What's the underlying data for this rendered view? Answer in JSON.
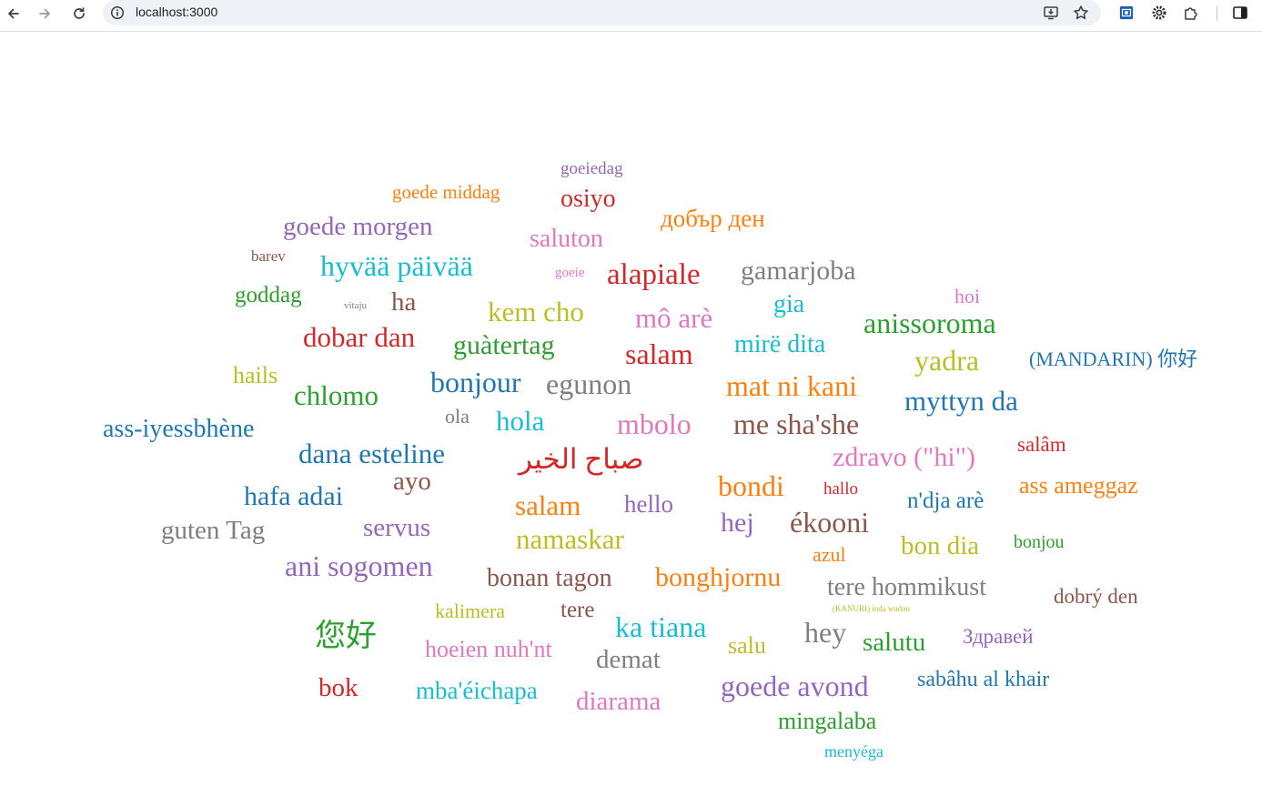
{
  "browser": {
    "url": "localhost:3000",
    "icons": {
      "back": "back-arrow-icon",
      "forward": "forward-arrow-icon",
      "reload": "reload-icon",
      "site_info": "info-icon",
      "install": "install-app-icon",
      "bookmark": "star-icon",
      "extension_1": "extension-blue-icon",
      "extension_2": "gear-icon",
      "extensions": "puzzle-icon",
      "side_panel": "side-panel-icon"
    }
  },
  "word_cloud": {
    "words": [
      {
        "text": "goeiedag",
        "color": "#9467bd"
      },
      {
        "text": "goede middag",
        "color": "#ff7f0e"
      },
      {
        "text": "osiyo",
        "color": "#d62728"
      },
      {
        "text": "добър ден",
        "color": "#ff7f0e"
      },
      {
        "text": "goede morgen",
        "color": "#9467bd"
      },
      {
        "text": "saluton",
        "color": "#e377c2"
      },
      {
        "text": "barev",
        "color": "#8c564b"
      },
      {
        "text": "hyvää päivää",
        "color": "#17becf"
      },
      {
        "text": "goeie",
        "color": "#e377c2"
      },
      {
        "text": "alapiale",
        "color": "#d62728"
      },
      {
        "text": "gamarjoba",
        "color": "#7f7f7f"
      },
      {
        "text": "goddag",
        "color": "#2ca02c"
      },
      {
        "text": "vitaju",
        "color": "#7f7f7f"
      },
      {
        "text": "ha",
        "color": "#8c564b"
      },
      {
        "text": "kem cho",
        "color": "#bcbd22"
      },
      {
        "text": "mô arè",
        "color": "#e377c2"
      },
      {
        "text": "gia",
        "color": "#17becf"
      },
      {
        "text": "hoi",
        "color": "#e377c2"
      },
      {
        "text": "anissoroma",
        "color": "#2ca02c"
      },
      {
        "text": "dobar dan",
        "color": "#d62728"
      },
      {
        "text": "guàtertag",
        "color": "#2ca02c"
      },
      {
        "text": "salam",
        "color": "#d62728"
      },
      {
        "text": "mirë dita",
        "color": "#17becf"
      },
      {
        "text": "yadra",
        "color": "#bcbd22"
      },
      {
        "text": "(MANDARIN) 你好",
        "color": "#1f77b4"
      },
      {
        "text": "hails",
        "color": "#bcbd22"
      },
      {
        "text": "chlomo",
        "color": "#2ca02c"
      },
      {
        "text": "bonjour",
        "color": "#1f77b4"
      },
      {
        "text": "egunon",
        "color": "#7f7f7f"
      },
      {
        "text": "mat ni kani",
        "color": "#ff7f0e"
      },
      {
        "text": "myttyn da",
        "color": "#1f77b4"
      },
      {
        "text": "ass-iyessbhène",
        "color": "#1f77b4"
      },
      {
        "text": "ola",
        "color": "#7f7f7f"
      },
      {
        "text": "hola",
        "color": "#17becf"
      },
      {
        "text": "mbolo",
        "color": "#e377c2"
      },
      {
        "text": "me sha'she",
        "color": "#8c564b"
      },
      {
        "text": "salâm",
        "color": "#d62728"
      },
      {
        "text": "dana esteline",
        "color": "#1f77b4"
      },
      {
        "text": "صباح الخير",
        "color": "#d62728"
      },
      {
        "text": "zdravo (\"hi\")",
        "color": "#e377c2"
      },
      {
        "text": "ayo",
        "color": "#8c564b"
      },
      {
        "text": "bondi",
        "color": "#ff7f0e"
      },
      {
        "text": "hallo",
        "color": "#d62728"
      },
      {
        "text": "ass ameggaz",
        "color": "#ff7f0e"
      },
      {
        "text": "hafa adai",
        "color": "#1f77b4"
      },
      {
        "text": "salam",
        "color": "#ff7f0e"
      },
      {
        "text": "hello",
        "color": "#9467bd"
      },
      {
        "text": "n'dja arè",
        "color": "#1f77b4"
      },
      {
        "text": "guten Tag",
        "color": "#7f7f7f"
      },
      {
        "text": "servus",
        "color": "#9467bd"
      },
      {
        "text": "namaskar",
        "color": "#bcbd22"
      },
      {
        "text": "hej",
        "color": "#9467bd"
      },
      {
        "text": "ékooni",
        "color": "#8c564b"
      },
      {
        "text": "azul",
        "color": "#ff7f0e"
      },
      {
        "text": "bon dia",
        "color": "#bcbd22"
      },
      {
        "text": "bonjou",
        "color": "#2ca02c"
      },
      {
        "text": "ani sogomen",
        "color": "#9467bd"
      },
      {
        "text": "bonan tagon",
        "color": "#8c564b"
      },
      {
        "text": "bonghjornu",
        "color": "#ff7f0e"
      },
      {
        "text": "tere hommikust",
        "color": "#7f7f7f"
      },
      {
        "text": "dobrý den",
        "color": "#8c564b"
      },
      {
        "text": "kalimera",
        "color": "#bcbd22"
      },
      {
        "text": "tere",
        "color": "#8c564b"
      },
      {
        "text": "(KANURI) inda wadou",
        "color": "#bcbd22"
      },
      {
        "text": "您好",
        "color": "#2ca02c"
      },
      {
        "text": "ka tiana",
        "color": "#17becf"
      },
      {
        "text": "hey",
        "color": "#7f7f7f"
      },
      {
        "text": "salutu",
        "color": "#2ca02c"
      },
      {
        "text": "Здравей",
        "color": "#9467bd"
      },
      {
        "text": "hoeien nuh'nt",
        "color": "#e377c2"
      },
      {
        "text": "demat",
        "color": "#7f7f7f"
      },
      {
        "text": "salu",
        "color": "#bcbd22"
      },
      {
        "text": "bok",
        "color": "#d62728"
      },
      {
        "text": "mba'éichapa",
        "color": "#17becf"
      },
      {
        "text": "diarama",
        "color": "#e377c2"
      },
      {
        "text": "goede avond",
        "color": "#9467bd"
      },
      {
        "text": "sabâhu al khair",
        "color": "#1f77b4"
      },
      {
        "text": "mingalaba",
        "color": "#2ca02c"
      },
      {
        "text": "menyéga",
        "color": "#17becf"
      }
    ]
  }
}
